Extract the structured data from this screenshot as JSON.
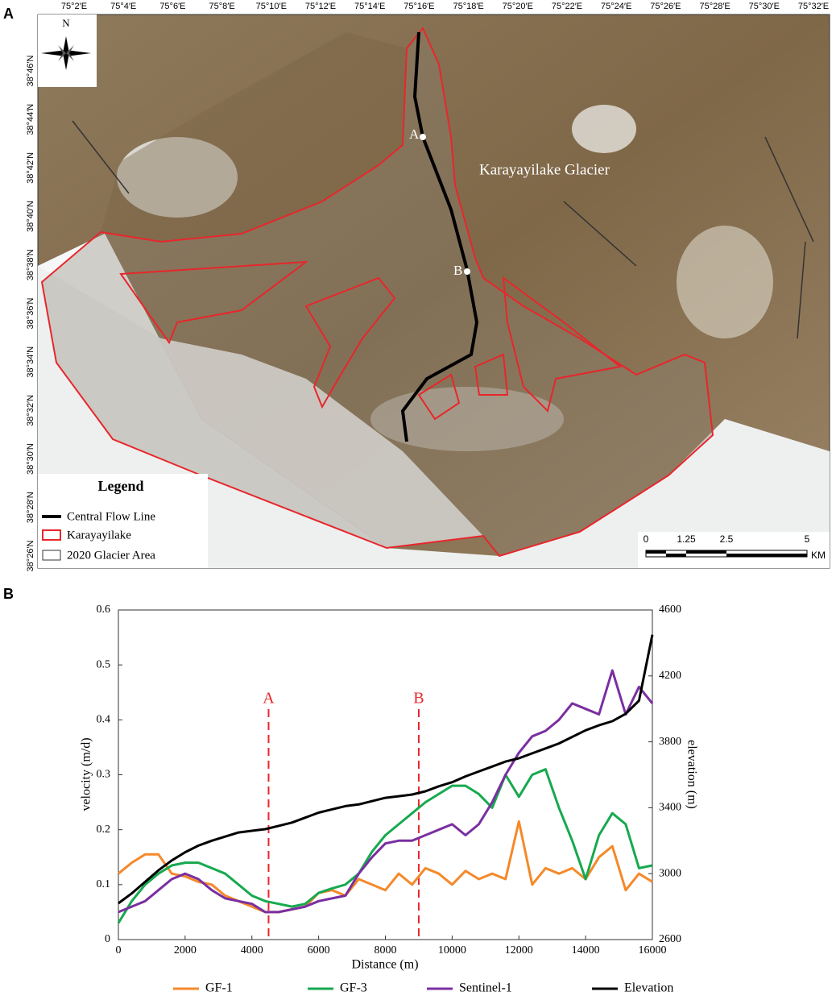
{
  "panel_labels": [
    "A",
    "B"
  ],
  "map": {
    "lon_labels": [
      "75°2′E",
      "75°4′E",
      "75°6′E",
      "75°8′E",
      "75°10′E",
      "75°12′E",
      "75°14′E",
      "75°16′E",
      "75°18′E",
      "75°20′E",
      "75°22′E",
      "75°24′E",
      "75°26′E",
      "75°28′E",
      "75°30′E",
      "75°32′E"
    ],
    "lat_labels": [
      "38°46′N",
      "38°44′N",
      "38°42′N",
      "38°40′N",
      "38°38′N",
      "38°36′N",
      "38°34′N",
      "38°32′N",
      "38°30′N",
      "38°28′N",
      "38°26′N"
    ],
    "north": "N",
    "point_labels": [
      "A",
      "B"
    ],
    "glacier_name": "Karayayilake Glacier",
    "legend": {
      "title": "Legend",
      "items": [
        "Central Flow Line",
        "Karayayilake",
        "2020 Glacier Area"
      ]
    },
    "scale_labels": [
      "0",
      "1.25",
      "2.5",
      "5"
    ],
    "scale_unit": "KM"
  },
  "chart_data": {
    "type": "line",
    "xlabel": "Distance  (m)",
    "ylabel": "velocity (m/d)",
    "y2label": "elevation (m)",
    "xlim": [
      0,
      16000
    ],
    "xticks": [
      0,
      2000,
      4000,
      6000,
      8000,
      10000,
      12000,
      14000,
      16000
    ],
    "ylim": [
      0,
      0.6
    ],
    "yticks": [
      0,
      0.1,
      0.2,
      0.3,
      0.4,
      0.5,
      0.6
    ],
    "y2lim": [
      2600,
      4600
    ],
    "y2ticks": [
      2600,
      3000,
      3400,
      3800,
      4200,
      4600
    ],
    "legend": "bottom",
    "annotations": [
      {
        "label": "A",
        "x": 4500,
        "color": "#e8262b"
      },
      {
        "label": "B",
        "x": 9000,
        "color": "#e8262b"
      }
    ],
    "x": [
      0,
      400,
      800,
      1200,
      1600,
      2000,
      2400,
      2800,
      3200,
      3600,
      4000,
      4400,
      4800,
      5200,
      5600,
      6000,
      6400,
      6800,
      7200,
      7600,
      8000,
      8400,
      8800,
      9200,
      9600,
      10000,
      10400,
      10800,
      11200,
      11600,
      12000,
      12400,
      12800,
      13200,
      13600,
      14000,
      14400,
      14800,
      15200,
      15600,
      16000
    ],
    "series": [
      {
        "name": "GF-1",
        "color": "#f5892a",
        "values": [
          0.12,
          0.14,
          0.155,
          0.155,
          0.12,
          0.115,
          0.105,
          0.1,
          0.08,
          0.07,
          0.06,
          0.05,
          0.05,
          0.055,
          0.06,
          0.085,
          0.09,
          0.08,
          0.11,
          0.1,
          0.09,
          0.12,
          0.1,
          0.13,
          0.12,
          0.1,
          0.125,
          0.11,
          0.12,
          0.11,
          0.215,
          0.1,
          0.13,
          0.12,
          0.13,
          0.11,
          0.15,
          0.17,
          0.09,
          0.12,
          0.105
        ]
      },
      {
        "name": "GF-3",
        "color": "#17a94f",
        "values": [
          0.03,
          0.07,
          0.1,
          0.12,
          0.135,
          0.14,
          0.14,
          0.13,
          0.12,
          0.1,
          0.08,
          0.07,
          0.065,
          0.06,
          0.065,
          0.085,
          0.093,
          0.1,
          0.12,
          0.16,
          0.19,
          0.21,
          0.23,
          0.25,
          0.265,
          0.28,
          0.28,
          0.265,
          0.24,
          0.3,
          0.26,
          0.3,
          0.31,
          0.24,
          0.18,
          0.11,
          0.19,
          0.23,
          0.21,
          0.13,
          0.135
        ]
      },
      {
        "name": "Sentinel-1",
        "color": "#7a2fa0",
        "values": [
          0.05,
          0.06,
          0.07,
          0.09,
          0.11,
          0.12,
          0.11,
          0.09,
          0.075,
          0.07,
          0.065,
          0.05,
          0.05,
          0.055,
          0.06,
          0.07,
          0.075,
          0.08,
          0.12,
          0.15,
          0.175,
          0.18,
          0.18,
          0.19,
          0.2,
          0.21,
          0.19,
          0.21,
          0.25,
          0.3,
          0.34,
          0.37,
          0.38,
          0.4,
          0.43,
          0.42,
          0.41,
          0.49,
          0.41,
          0.46,
          0.43
        ]
      },
      {
        "name": "Elevation",
        "color": "#000000",
        "axis": "y2",
        "values": [
          2820,
          2880,
          2950,
          3020,
          3080,
          3130,
          3170,
          3200,
          3225,
          3250,
          3260,
          3270,
          3290,
          3310,
          3340,
          3370,
          3390,
          3410,
          3420,
          3440,
          3460,
          3470,
          3480,
          3500,
          3530,
          3555,
          3590,
          3620,
          3650,
          3680,
          3700,
          3730,
          3760,
          3790,
          3830,
          3870,
          3900,
          3925,
          3970,
          4050,
          4450
        ]
      }
    ]
  }
}
